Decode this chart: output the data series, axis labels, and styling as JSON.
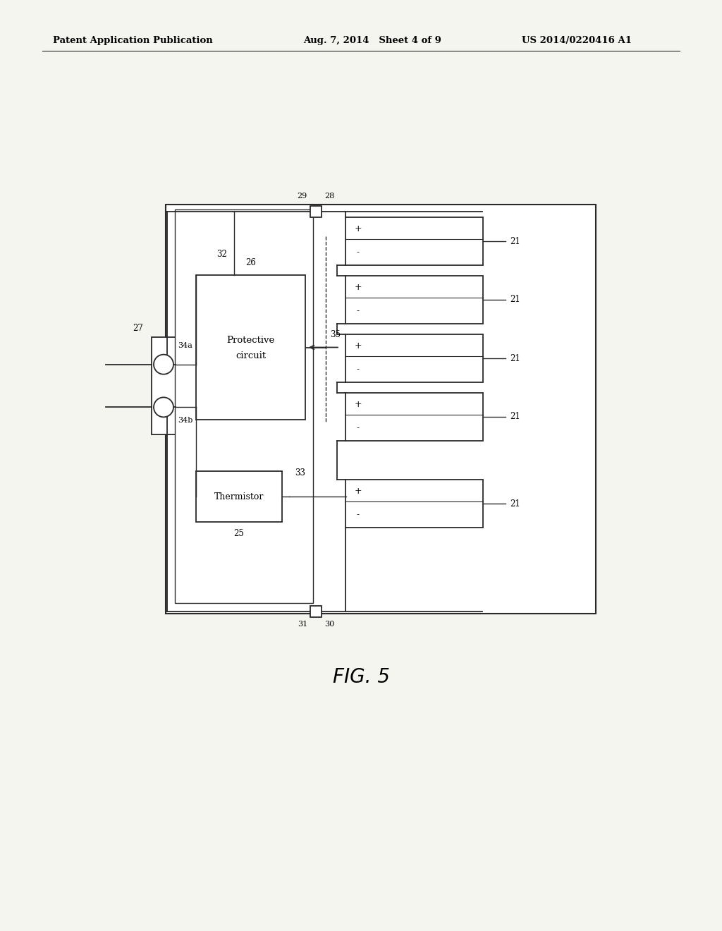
{
  "bg_color": "#f5f5f0",
  "line_color": "#2a2a2a",
  "header_left": "Patent Application Publication",
  "header_mid": "Aug. 7, 2014   Sheet 4 of 9",
  "header_right": "US 2014/0220416 A1",
  "figure_label": "FIG. 5"
}
